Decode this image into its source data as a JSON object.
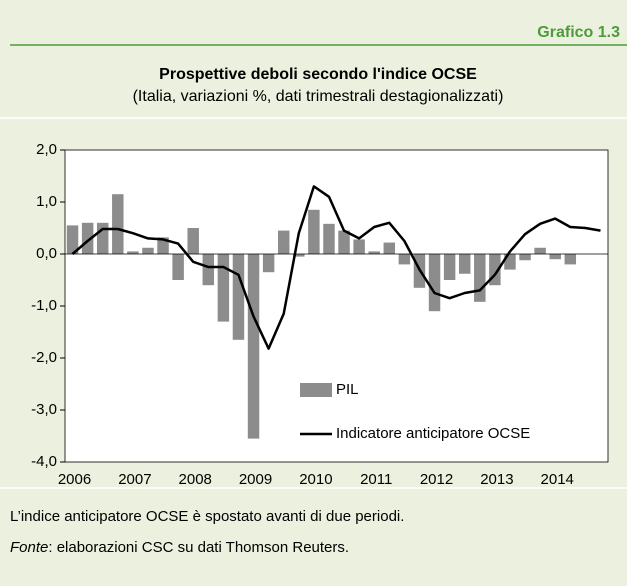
{
  "header": "Grafico 1.3",
  "chart_data": {
    "type": "bar_line",
    "title": "Prospettive deboli secondo l'indice OCSE",
    "subtitle": "(Italia, variazioni %, dati trimestrali destagionalizzati)",
    "categories": [
      "2006",
      null,
      null,
      null,
      "2007",
      null,
      null,
      null,
      "2008",
      null,
      null,
      null,
      "2009",
      null,
      null,
      null,
      "2010",
      null,
      null,
      null,
      "2011",
      null,
      null,
      null,
      "2012",
      null,
      null,
      null,
      "2013",
      null,
      null,
      null,
      "2014",
      null,
      null,
      null
    ],
    "series": [
      {
        "name": "PIL",
        "kind": "bar",
        "color": "#8c8c8c",
        "values": [
          0.55,
          0.6,
          0.6,
          1.15,
          0.05,
          0.12,
          0.32,
          -0.5,
          0.5,
          -0.6,
          -1.3,
          -1.65,
          -3.55,
          -0.35,
          0.45,
          -0.05,
          0.85,
          0.58,
          0.45,
          0.28,
          0.05,
          0.22,
          -0.2,
          -0.65,
          -1.1,
          -0.5,
          -0.38,
          -0.92,
          -0.6,
          -0.3,
          -0.12,
          0.12,
          -0.1,
          -0.2,
          null,
          null
        ]
      },
      {
        "name": "Indicatore anticipatore OCSE",
        "kind": "line",
        "color": "#000000",
        "values": [
          0.0,
          0.25,
          0.48,
          0.48,
          0.4,
          0.3,
          0.28,
          0.2,
          -0.15,
          -0.25,
          -0.25,
          -0.4,
          -1.2,
          -1.82,
          -1.15,
          0.4,
          1.3,
          1.1,
          0.45,
          0.3,
          0.52,
          0.6,
          0.25,
          -0.3,
          -0.75,
          -0.85,
          -0.75,
          -0.7,
          -0.4,
          0.05,
          0.38,
          0.58,
          0.68,
          0.52,
          0.5,
          0.45
        ]
      }
    ],
    "ylim": [
      -4,
      2
    ],
    "yticks": [
      {
        "value": -4,
        "label": "-4,0"
      },
      {
        "value": -3,
        "label": "-3,0"
      },
      {
        "value": -2,
        "label": "-2,0"
      },
      {
        "value": -1,
        "label": "-1,0"
      },
      {
        "value": 0,
        "label": "0,0"
      },
      {
        "value": 1,
        "label": "1,0"
      },
      {
        "value": 2,
        "label": "2,0"
      }
    ]
  },
  "footer": {
    "note": "L’indice anticipatore OCSE è spostato avanti di due periodi.",
    "source_label": "Fonte",
    "source_text": ": elaborazioni CSC su dati Thomson Reuters."
  }
}
